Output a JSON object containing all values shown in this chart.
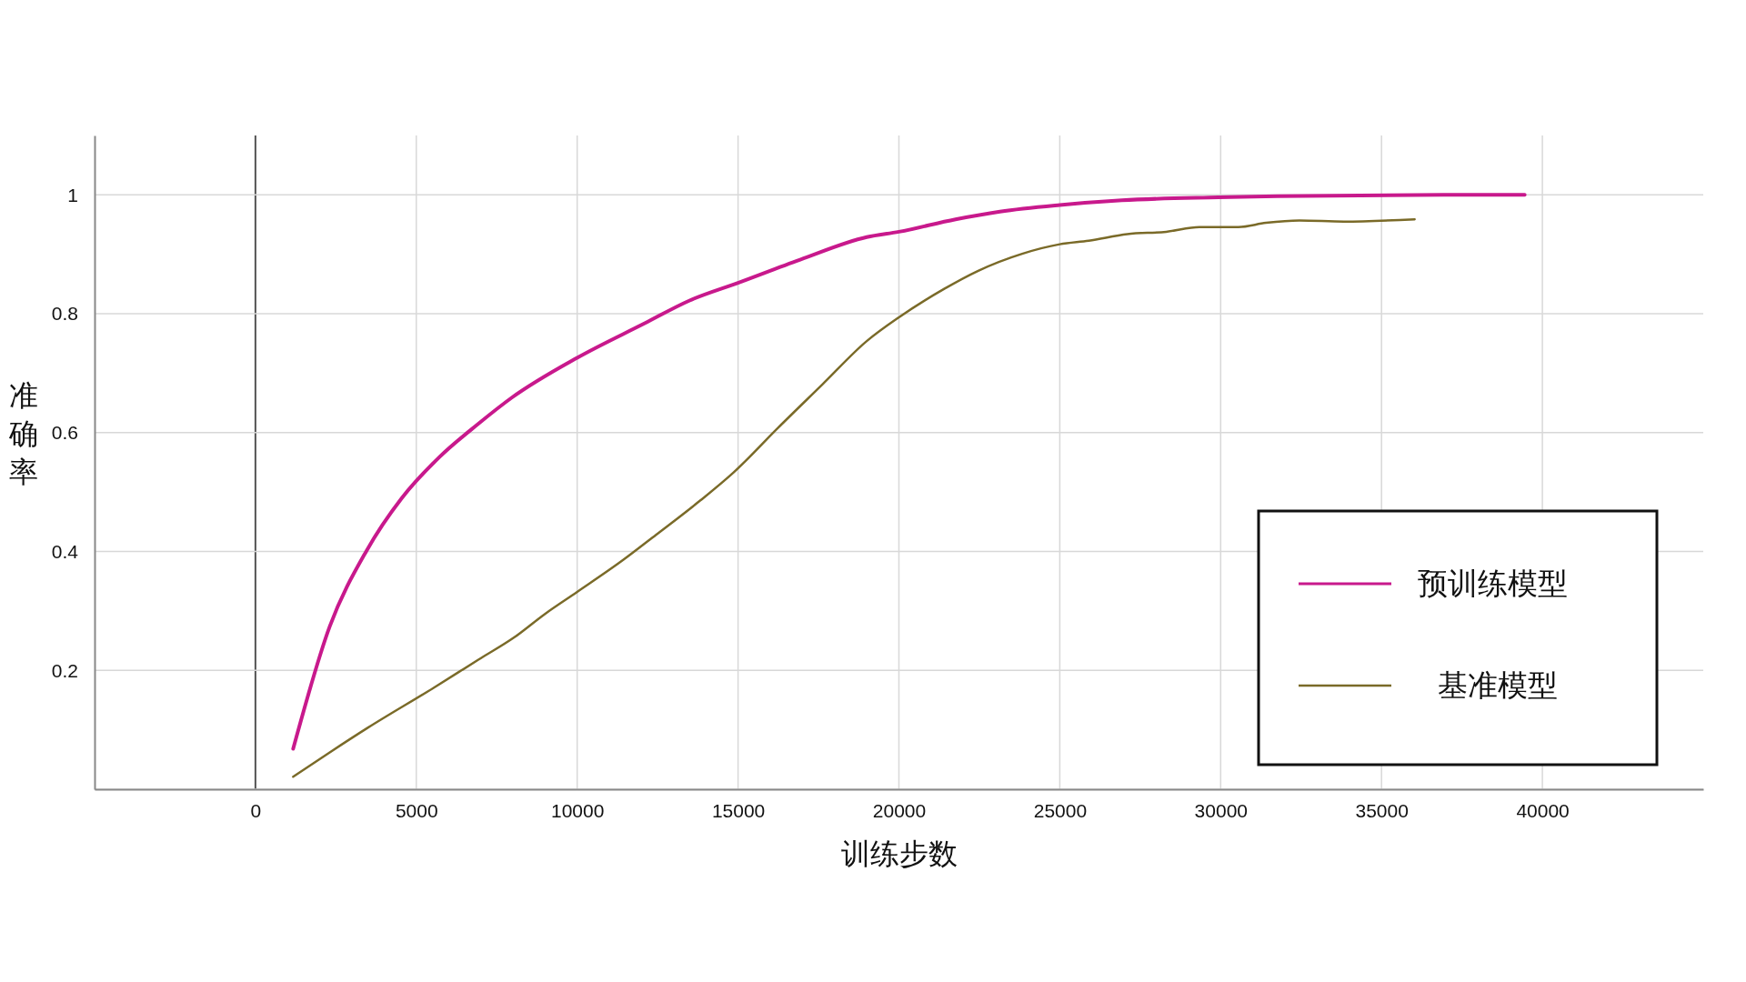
{
  "chart_data": {
    "type": "line",
    "xlabel": "训练步数",
    "ylabel": "准确率",
    "xlim": [
      -5000,
      45000
    ],
    "ylim": [
      0,
      1.1
    ],
    "xticks": [
      0,
      5000,
      10000,
      15000,
      20000,
      25000,
      30000,
      35000,
      40000
    ],
    "yticks": [
      {
        "value": 0,
        "label": null
      },
      0.2,
      0.4,
      0.6,
      0.8,
      1
    ],
    "grid": true,
    "legend": "bottom right",
    "line_style": "solid",
    "marker": "none",
    "series": [
      {
        "name": "预训练模型",
        "color": "#c8198c",
        "x": [
          1172,
          2310,
          3450,
          4550,
          5720,
          6930,
          7970,
          10000,
          12100,
          13480,
          15000,
          16930,
          19000,
          20000,
          21760,
          23140,
          25000,
          26930,
          29930,
          31760,
          36930,
          39450
        ],
        "values": [
          0.068,
          0.274,
          0.401,
          0.49,
          0.559,
          0.615,
          0.659,
          0.726,
          0.784,
          0.822,
          0.852,
          0.891,
          0.929,
          0.938,
          0.959,
          0.972,
          0.983,
          0.991,
          0.996,
          0.998,
          1.0,
          1.0
        ]
      },
      {
        "name": "基准模型",
        "color": "#7a6a28",
        "x": [
          1172,
          2310,
          3480,
          5550,
          6930,
          8030,
          9000,
          10000,
          11410,
          12450,
          13830,
          14860,
          16240,
          17620,
          19000,
          20000,
          21410,
          22450,
          23830,
          25000,
          25900,
          27100,
          28310,
          29340,
          30550,
          31410,
          32450,
          33830,
          36030
        ],
        "values": [
          0.021,
          0.062,
          0.103,
          0.171,
          0.218,
          0.255,
          0.295,
          0.332,
          0.385,
          0.428,
          0.486,
          0.533,
          0.608,
          0.681,
          0.754,
          0.794,
          0.842,
          0.872,
          0.901,
          0.917,
          0.923,
          0.934,
          0.938,
          0.946,
          0.946,
          0.953,
          0.957,
          0.955,
          0.959
        ]
      }
    ]
  }
}
